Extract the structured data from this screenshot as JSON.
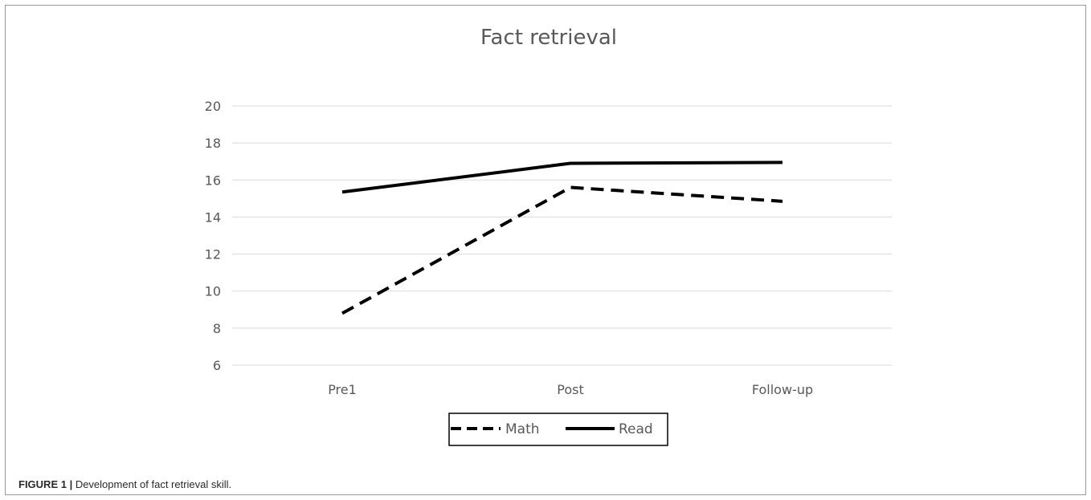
{
  "chart_data": {
    "type": "line",
    "title": "Fact retrieval",
    "categories": [
      "Pre1",
      "Post",
      "Follow-up"
    ],
    "ylim": [
      6,
      20
    ],
    "yticks": [
      6,
      8,
      10,
      12,
      14,
      16,
      18,
      20
    ],
    "grid": true,
    "legend_position": "bottom",
    "series": [
      {
        "name": "Math",
        "values": [
          8.8,
          15.6,
          14.85
        ],
        "style": "dashed",
        "color": "#000000"
      },
      {
        "name": "Read",
        "values": [
          15.35,
          16.9,
          16.95
        ],
        "style": "solid",
        "color": "#000000"
      }
    ]
  },
  "caption": {
    "label": "FIGURE 1 |",
    "text": " Development of fact retrieval skill."
  }
}
